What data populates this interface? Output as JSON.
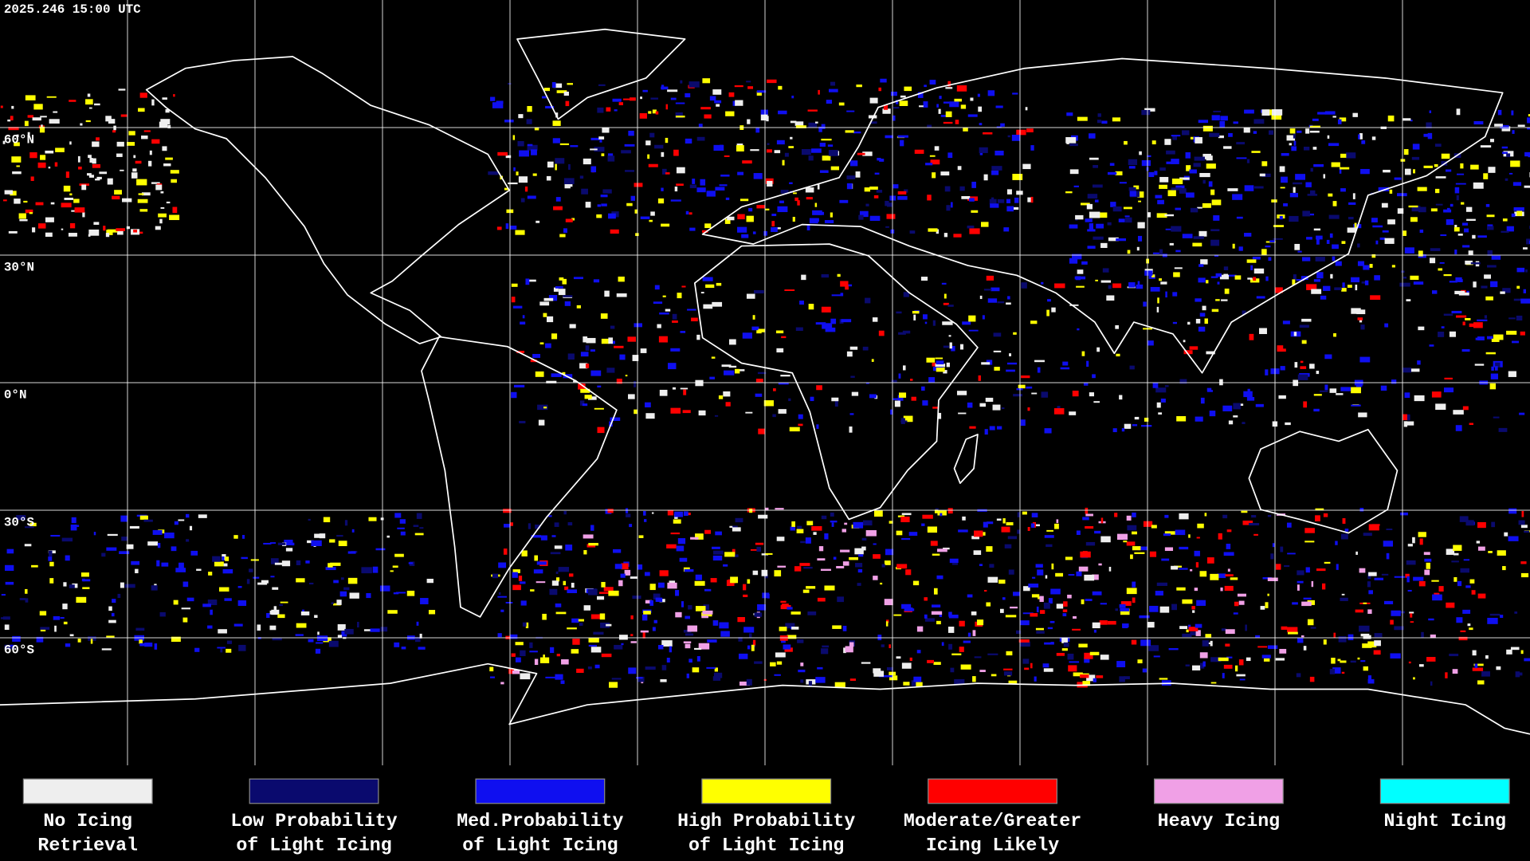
{
  "header": {
    "timestamp": "2025.246 15:00 UTC"
  },
  "map": {
    "latitude_labels": [
      "60°N",
      "30°N",
      "0°N",
      "30°S",
      "60°S"
    ]
  },
  "legend": [
    {
      "color": "#eeeeee",
      "lines": [
        "No Icing",
        "Retrieval"
      ]
    },
    {
      "color": "#0a0a6e",
      "lines": [
        "Low Probability",
        "of Light Icing"
      ]
    },
    {
      "color": "#0f0ff0",
      "lines": [
        "Med.Probability",
        "of Light Icing"
      ]
    },
    {
      "color": "#ffff00",
      "lines": [
        "High Probability",
        "of Light Icing"
      ]
    },
    {
      "color": "#ff0000",
      "lines": [
        "Moderate/Greater",
        "Icing Likely"
      ]
    },
    {
      "color": "#f0a0e6",
      "lines": [
        "Heavy Icing"
      ]
    },
    {
      "color": "#00ffff",
      "lines": [
        "Night Icing"
      ]
    }
  ]
}
